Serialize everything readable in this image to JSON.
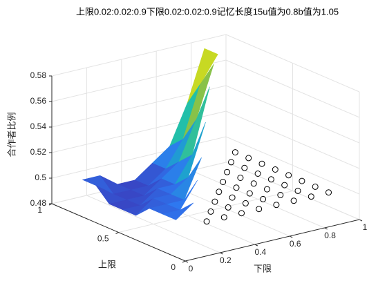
{
  "chart_data": {
    "type": "surface",
    "title": "上限0.02:0.02:0.9下限0.02:0.02:0.9记忆长度15u值为0.8b值为1.05",
    "xlabel": "下限",
    "ylabel": "上限",
    "zlabel": "合作者比例",
    "xlim": [
      0,
      1
    ],
    "ylim": [
      0,
      1
    ],
    "zlim": [
      0.48,
      0.58
    ],
    "xticks": [
      0,
      0.2,
      0.4,
      0.6,
      0.8,
      1
    ],
    "yticks": [
      0,
      0.5,
      1
    ],
    "zticks": [
      0.48,
      0.5,
      0.52,
      0.54,
      0.56,
      0.58
    ],
    "grid": true,
    "x": [
      0.1,
      0.2,
      0.3,
      0.4,
      0.5,
      0.6,
      0.7,
      0.8,
      0.9
    ],
    "y": [
      0.1,
      0.2,
      0.3,
      0.4,
      0.5,
      0.6,
      0.7,
      0.8,
      0.9
    ],
    "z": [
      [
        0.5,
        null,
        null,
        null,
        null,
        null,
        null,
        null,
        null
      ],
      [
        0.5,
        0.51,
        null,
        null,
        null,
        null,
        null,
        null,
        null
      ],
      [
        0.5,
        0.5,
        0.52,
        null,
        null,
        null,
        null,
        null,
        null
      ],
      [
        0.5,
        0.5,
        0.5,
        0.53,
        null,
        null,
        null,
        null,
        null
      ],
      [
        0.49,
        0.5,
        0.5,
        0.51,
        0.55,
        null,
        null,
        null,
        null
      ],
      [
        0.49,
        0.49,
        0.5,
        0.5,
        0.52,
        0.57,
        null,
        null,
        null
      ],
      [
        0.49,
        0.49,
        0.49,
        0.5,
        0.51,
        0.54,
        0.58,
        null,
        null
      ],
      [
        0.5,
        0.49,
        0.49,
        0.49,
        0.5,
        0.52,
        0.56,
        0.58,
        null
      ],
      [
        0.5,
        0.5,
        0.49,
        0.49,
        0.5,
        0.51,
        0.54,
        0.58,
        0.58
      ]
    ],
    "markers": [
      [
        null,
        0.5,
        0.5,
        0.5,
        0.5,
        0.5,
        0.5,
        0.5,
        0.5
      ],
      [
        null,
        null,
        0.5,
        0.5,
        0.5,
        0.5,
        0.5,
        0.5,
        0.5
      ],
      [
        null,
        null,
        null,
        0.5,
        0.5,
        0.5,
        0.5,
        0.5,
        0.5
      ],
      [
        null,
        null,
        null,
        null,
        0.5,
        0.5,
        0.5,
        0.5,
        0.5
      ],
      [
        null,
        null,
        null,
        null,
        null,
        0.5,
        0.5,
        0.5,
        0.5
      ],
      [
        null,
        null,
        null,
        null,
        null,
        null,
        0.5,
        0.5,
        0.5
      ],
      [
        null,
        null,
        null,
        null,
        null,
        null,
        null,
        0.5,
        0.5
      ],
      [
        null,
        null,
        null,
        null,
        null,
        null,
        null,
        null,
        0.5
      ],
      [
        null,
        null,
        null,
        null,
        null,
        null,
        null,
        null,
        null
      ]
    ]
  }
}
